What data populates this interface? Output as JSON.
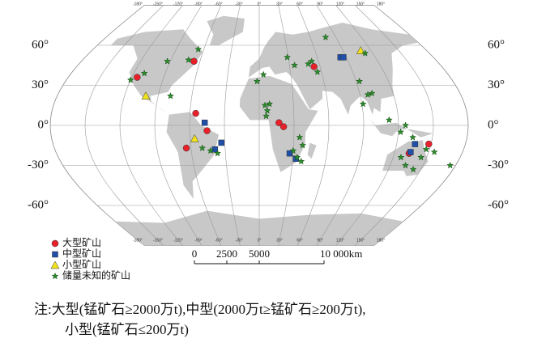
{
  "map": {
    "lat_labels": [
      {
        "value": 60,
        "label": "60°"
      },
      {
        "value": 30,
        "label": "30°"
      },
      {
        "value": 0,
        "label": "0°"
      },
      {
        "value": -30,
        "label": "-30°"
      },
      {
        "value": -60,
        "label": "-60°"
      }
    ],
    "lon_labels": [
      {
        "value": -180,
        "label": "-180°"
      },
      {
        "value": -150,
        "label": "-150°"
      },
      {
        "value": -120,
        "label": "-120°"
      },
      {
        "value": -90,
        "label": "-90°"
      },
      {
        "value": -60,
        "label": "-60°"
      },
      {
        "value": -30,
        "label": "-30°"
      },
      {
        "value": 0,
        "label": "0°"
      },
      {
        "value": 30,
        "label": "30°"
      },
      {
        "value": 60,
        "label": "60°"
      },
      {
        "value": 90,
        "label": "90°"
      },
      {
        "value": 120,
        "label": "120°"
      },
      {
        "value": 150,
        "label": "150°"
      },
      {
        "value": 180,
        "label": "180°"
      }
    ],
    "categories": [
      {
        "label": "大型矿山",
        "color": "#e8202a",
        "shape": "circle",
        "mines": [
          [
            -115,
            36
          ],
          [
            -66,
            48
          ],
          [
            -55,
            9
          ],
          [
            -45,
            -4
          ],
          [
            -64,
            -17
          ],
          [
            17,
            2
          ],
          [
            21,
            -1
          ],
          [
            54,
            44
          ],
          [
            148,
            -14
          ],
          [
            133,
            -21
          ]
        ]
      },
      {
        "label": "中型矿山",
        "color": "#1f4fa8",
        "shape": "square",
        "mines": [
          [
            -47,
            2
          ],
          [
            -33,
            -13
          ],
          [
            -39,
            -18
          ],
          [
            27,
            -21
          ],
          [
            33,
            -25
          ],
          [
            84,
            51
          ],
          [
            87,
            51
          ],
          [
            134,
            -20
          ],
          [
            136,
            -14
          ]
        ]
      },
      {
        "label": "小型矿山",
        "color": "#f2e21c",
        "shape": "triangle",
        "mines": [
          [
            -101,
            22
          ],
          [
            -56,
            -10
          ],
          [
            109,
            56
          ]
        ]
      },
      {
        "label": "储量未知的矿山",
        "color": "#2e8b2e",
        "shape": "star",
        "mines": [
          [
            -120,
            34
          ],
          [
            -110,
            39
          ],
          [
            -79,
            22
          ],
          [
            -93,
            48
          ],
          [
            -66,
            57
          ],
          [
            -72,
            49
          ],
          [
            -2,
            33
          ],
          [
            4,
            38
          ],
          [
            5,
            15
          ],
          [
            7,
            11
          ],
          [
            9,
            16
          ],
          [
            6,
            7
          ],
          [
            29,
            51
          ],
          [
            35,
            45
          ],
          [
            49,
            46
          ],
          [
            56,
            40
          ],
          [
            35,
            -9
          ],
          [
            38,
            -15
          ],
          [
            34,
            -24
          ],
          [
            38,
            -27
          ],
          [
            30,
            -19
          ],
          [
            78,
            66
          ],
          [
            53,
            48
          ],
          [
            112,
            54
          ],
          [
            97,
            23
          ],
          [
            91,
            16
          ],
          [
            93,
            33
          ],
          [
            101,
            24
          ],
          [
            112,
            4
          ],
          [
            122,
            -5
          ],
          [
            126,
            0
          ],
          [
            133,
            -9
          ],
          [
            127,
            -24
          ],
          [
            134,
            -30
          ],
          [
            145,
            -24
          ],
          [
            147,
            -18
          ],
          [
            155,
            -20
          ],
          [
            143,
            -33
          ],
          [
            175,
            -30
          ],
          [
            -50,
            -17
          ],
          [
            -43,
            -19
          ],
          [
            -37,
            -21
          ]
        ]
      }
    ],
    "scale_bar": [
      "0",
      "2500",
      "5000",
      "10 000km"
    ],
    "note": [
      "注:大型(锰矿石≥2000万t),中型(2000万t≥锰矿石≥200万t),",
      "小型(锰矿石≤200万t)"
    ]
  }
}
